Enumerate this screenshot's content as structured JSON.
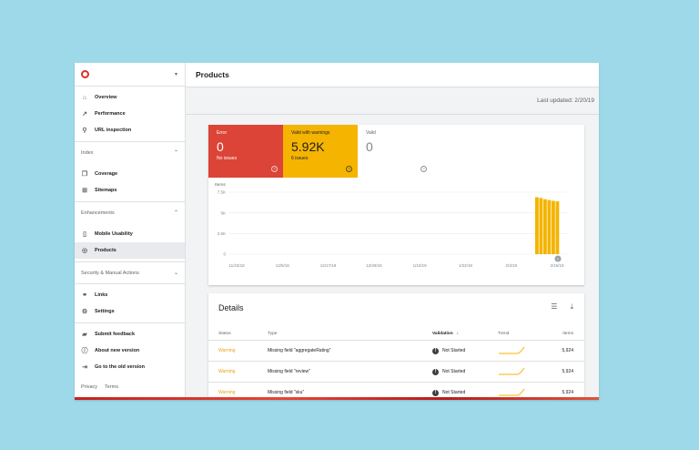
{
  "header": {
    "title": "Products"
  },
  "last_updated": "Last updated: 2/20/19",
  "sidebar": {
    "top_items": [
      {
        "label": "Overview",
        "icon": "home-icon"
      },
      {
        "label": "Performance",
        "icon": "trending-up-icon"
      },
      {
        "label": "URL inspection",
        "icon": "search-icon"
      }
    ],
    "index_section": "Index",
    "index_items": [
      {
        "label": "Coverage",
        "icon": "coverage-icon"
      },
      {
        "label": "Sitemaps",
        "icon": "sitemap-icon"
      }
    ],
    "enh_section": "Enhancements",
    "enh_items": [
      {
        "label": "Mobile Usability",
        "icon": "mobile-icon"
      },
      {
        "label": "Products",
        "icon": "products-icon"
      }
    ],
    "sec_section": "Security & Manual Actions",
    "other_items": [
      {
        "label": "Links",
        "icon": "links-icon"
      },
      {
        "label": "Settings",
        "icon": "gear-icon"
      }
    ],
    "bottom_items": [
      {
        "label": "Submit feedback",
        "icon": "feedback-icon"
      },
      {
        "label": "About new version",
        "icon": "info-icon"
      },
      {
        "label": "Go to the old version",
        "icon": "exit-icon"
      }
    ],
    "footer": {
      "privacy": "Privacy",
      "terms": "Terms"
    }
  },
  "tiles": {
    "error": {
      "label": "Error",
      "value": "0",
      "sub": "No issues",
      "color": "#db4437"
    },
    "warnings": {
      "label": "Valid with warnings",
      "value": "5.92K",
      "sub": "6 issues",
      "color": "#f4b400"
    },
    "valid": {
      "label": "Valid",
      "value": "0"
    }
  },
  "chart_data": {
    "type": "bar",
    "ylabel": "Items",
    "y_ticks": [
      "7.5K",
      "5K",
      "2.5K",
      "0"
    ],
    "ylim": [
      0,
      7500
    ],
    "x_ticks": [
      "11/23/18",
      "12/5/18",
      "12/17/18",
      "12/29/18",
      "1/10/19",
      "1/22/19",
      "2/3/19",
      "2/15/19"
    ],
    "categories": [
      "2/13/19",
      "2/14/19",
      "2/15/19",
      "2/16/19",
      "2/17/19",
      "2/18/19"
    ],
    "values": [
      6900,
      6800,
      6650,
      6550,
      6450,
      6400
    ],
    "color": "#f4b400"
  },
  "details": {
    "title": "Details",
    "columns": {
      "status": "Status",
      "type": "Type",
      "validation": "Validation",
      "trend": "Trend",
      "items": "Items"
    },
    "rows": [
      {
        "status": "Warning",
        "type": "Missing field \"aggregateRating\"",
        "validation": "Not Started",
        "items": "5,924"
      },
      {
        "status": "Warning",
        "type": "Missing field \"review\"",
        "validation": "Not Started",
        "items": "5,924"
      },
      {
        "status": "Warning",
        "type": "Missing field \"sku\"",
        "validation": "Not Started",
        "items": "5,924"
      }
    ]
  }
}
